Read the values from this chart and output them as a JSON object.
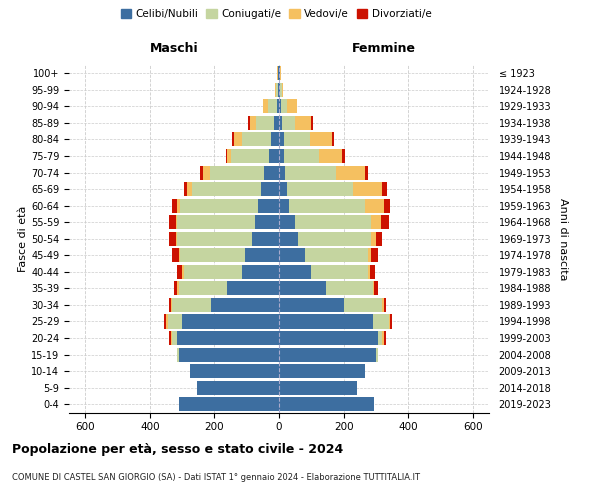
{
  "age_groups": [
    "0-4",
    "5-9",
    "10-14",
    "15-19",
    "20-24",
    "25-29",
    "30-34",
    "35-39",
    "40-44",
    "45-49",
    "50-54",
    "55-59",
    "60-64",
    "65-69",
    "70-74",
    "75-79",
    "80-84",
    "85-89",
    "90-94",
    "95-99",
    "100+"
  ],
  "birth_years": [
    "2019-2023",
    "2014-2018",
    "2009-2013",
    "2004-2008",
    "1999-2003",
    "1994-1998",
    "1989-1993",
    "1984-1988",
    "1979-1983",
    "1974-1978",
    "1969-1973",
    "1964-1968",
    "1959-1963",
    "1954-1958",
    "1949-1953",
    "1944-1948",
    "1939-1943",
    "1934-1938",
    "1929-1933",
    "1924-1928",
    "≤ 1923"
  ],
  "male_celibe": [
    310,
    255,
    275,
    310,
    315,
    300,
    210,
    160,
    115,
    105,
    85,
    75,
    65,
    55,
    45,
    30,
    25,
    15,
    5,
    3,
    2
  ],
  "male_coniugato": [
    0,
    0,
    0,
    5,
    15,
    45,
    120,
    150,
    180,
    200,
    230,
    240,
    240,
    215,
    170,
    120,
    90,
    55,
    30,
    5,
    2
  ],
  "male_vedovo": [
    0,
    0,
    0,
    0,
    5,
    5,
    5,
    5,
    5,
    5,
    5,
    5,
    10,
    15,
    20,
    10,
    25,
    20,
    15,
    5,
    1
  ],
  "male_divorziato": [
    0,
    0,
    0,
    0,
    5,
    5,
    5,
    10,
    15,
    20,
    20,
    20,
    15,
    10,
    10,
    5,
    5,
    5,
    0,
    0,
    0
  ],
  "female_celibe": [
    295,
    240,
    265,
    300,
    305,
    290,
    200,
    145,
    100,
    80,
    60,
    50,
    30,
    25,
    20,
    15,
    15,
    10,
    5,
    3,
    2
  ],
  "female_coniugato": [
    0,
    0,
    0,
    5,
    15,
    50,
    120,
    145,
    175,
    195,
    225,
    235,
    235,
    205,
    155,
    110,
    80,
    40,
    20,
    5,
    2
  ],
  "female_vedovo": [
    0,
    0,
    0,
    0,
    5,
    5,
    5,
    5,
    8,
    10,
    15,
    30,
    60,
    90,
    90,
    70,
    70,
    50,
    30,
    5,
    1
  ],
  "female_divorziata": [
    0,
    0,
    0,
    0,
    5,
    5,
    5,
    10,
    15,
    20,
    20,
    25,
    20,
    15,
    10,
    10,
    5,
    5,
    0,
    0,
    0
  ],
  "colors": {
    "celibe": "#3d6ea0",
    "coniugato": "#c5d5a0",
    "vedovo": "#f5c060",
    "divorziato": "#cc1100"
  },
  "xlim": 650,
  "title": "Popolazione per età, sesso e stato civile - 2024",
  "subtitle": "COMUNE DI CASTEL SAN GIORGIO (SA) - Dati ISTAT 1° gennaio 2024 - Elaborazione TUTTITALIA.IT",
  "ylabel": "Fasce di età",
  "ylabel_right": "Anni di nascita",
  "xlabel_left": "Maschi",
  "xlabel_right": "Femmine",
  "legend_labels": [
    "Celibi/Nubili",
    "Coniugati/e",
    "Vedovi/e",
    "Divorziati/e"
  ],
  "background_color": "#ffffff"
}
